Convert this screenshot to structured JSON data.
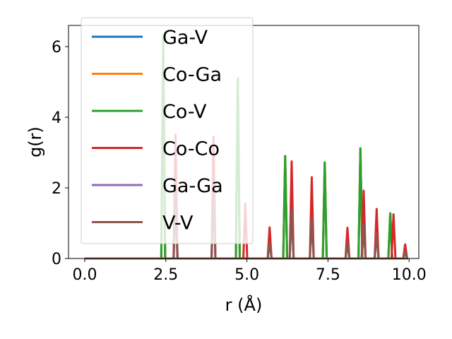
{
  "chart_data": {
    "type": "line",
    "xlabel": "r (Å)",
    "ylabel": "g(r)",
    "xlim": [
      -0.5,
      10.3
    ],
    "ylim": [
      0,
      6.6
    ],
    "xticks": [
      0.0,
      2.5,
      5.0,
      7.5,
      10.0
    ],
    "xtick_labels": [
      "0.0",
      "2.5",
      "5.0",
      "7.5",
      "10.0"
    ],
    "yticks": [
      0,
      2,
      4,
      6
    ],
    "ytick_labels": [
      "0",
      "2",
      "4",
      "6"
    ],
    "grid": false,
    "legend_position": "upper-left",
    "series": [
      {
        "name": "Ga-V",
        "color": "#1f77b4",
        "peaks": [
          [
            2.42,
            6.3
          ],
          [
            4.72,
            5.1
          ],
          [
            6.18,
            2.9
          ],
          [
            7.4,
            2.72
          ],
          [
            8.5,
            3.12
          ],
          [
            9.42,
            1.28
          ]
        ]
      },
      {
        "name": "Co-Ga",
        "color": "#ff7f0e",
        "peaks": [
          [
            2.42,
            6.3
          ],
          [
            4.72,
            5.1
          ],
          [
            6.18,
            2.9
          ],
          [
            7.4,
            2.72
          ],
          [
            8.5,
            3.12
          ],
          [
            9.42,
            1.28
          ]
        ]
      },
      {
        "name": "Co-V",
        "color": "#2ca02c",
        "peaks": [
          [
            2.42,
            6.3
          ],
          [
            4.72,
            5.1
          ],
          [
            6.18,
            2.9
          ],
          [
            7.4,
            2.72
          ],
          [
            8.5,
            3.12
          ],
          [
            9.42,
            1.28
          ]
        ]
      },
      {
        "name": "Co-Co",
        "color": "#d62728",
        "peaks": [
          [
            2.8,
            3.5
          ],
          [
            3.97,
            3.45
          ],
          [
            4.95,
            1.55
          ],
          [
            5.7,
            0.88
          ],
          [
            6.38,
            2.75
          ],
          [
            7.0,
            2.3
          ],
          [
            8.1,
            0.87
          ],
          [
            8.6,
            1.92
          ],
          [
            9.0,
            1.4
          ],
          [
            9.52,
            1.25
          ],
          [
            9.88,
            0.4
          ]
        ]
      },
      {
        "name": "Ga-Ga",
        "color": "#9467bd",
        "peaks": [
          [
            2.8,
            1.75
          ],
          [
            3.97,
            1.75
          ],
          [
            5.7,
            0.44
          ],
          [
            6.38,
            1.37
          ],
          [
            7.0,
            1.15
          ],
          [
            8.1,
            0.44
          ],
          [
            8.6,
            0.96
          ],
          [
            9.0,
            0.7
          ],
          [
            9.88,
            0.2
          ]
        ]
      },
      {
        "name": "V-V",
        "color": "#8c564b",
        "peaks": [
          [
            2.8,
            1.75
          ],
          [
            3.97,
            1.75
          ],
          [
            5.7,
            0.44
          ],
          [
            6.38,
            1.37
          ],
          [
            7.0,
            1.15
          ],
          [
            8.1,
            0.44
          ],
          [
            8.6,
            0.96
          ],
          [
            9.0,
            0.7
          ],
          [
            9.88,
            0.2
          ]
        ]
      }
    ]
  }
}
